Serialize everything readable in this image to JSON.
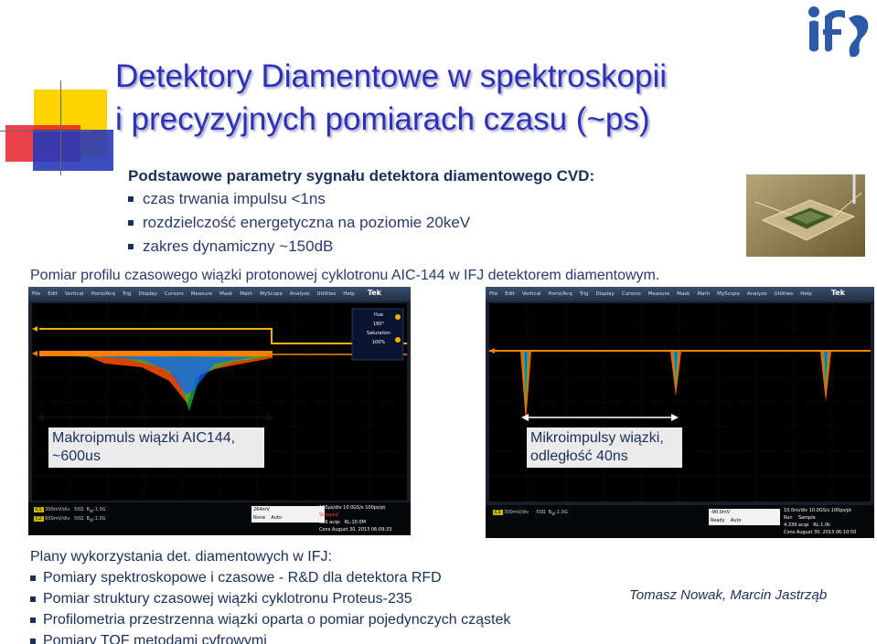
{
  "title": {
    "line1": "Detektory Diamentowe w spektroskopii",
    "line2": "i precyzyjnych pomiarach czasu (~ps)"
  },
  "params": {
    "heading": "Podstawowe parametry sygnału detektora diamentowego CVD:",
    "items": [
      "czas trwania impulsu <1ns",
      "rozdzielczość energetyczna na poziomie 20keV",
      "zakres dynamiczny ~150dB"
    ]
  },
  "measurement": "Pomiar profilu czasowego wiązki protonowej cyklotronu AIC-144 w IFJ detektorem diamentowym.",
  "scope1": {
    "menu": [
      "File",
      "Edit",
      "Vertical",
      "Horiz/Acq",
      "Trig",
      "Display",
      "Cursors",
      "Measure",
      "Mask",
      "Math",
      "MyScope",
      "Analyze",
      "Utilities",
      "Help"
    ],
    "brand": "Tek",
    "hue_label": "Hue",
    "hue_value": "180°",
    "sat_label": "Saturation",
    "sat_value": "100%",
    "ch1": "300mV/div",
    "ch2": "600mV/div",
    "imp": "50Ω",
    "bw": "1.0G",
    "trigger": "264mV",
    "trig_mode": "None",
    "auto": "Auto",
    "timebase": "100µs/div",
    "sample": "10.0GS/s",
    "res": "100ps/pt",
    "state": "Stopped",
    "acqs": "386 acqs",
    "rl": "RL:10.0M",
    "cons": "Cons",
    "date": "August 30, 2013",
    "time": "06:09:33"
  },
  "scope2": {
    "menu": [
      "File",
      "Edit",
      "Vertical",
      "Horiz/Acq",
      "Trig",
      "Display",
      "Cursors",
      "Measure",
      "Mask",
      "Math",
      "MyScope",
      "Analyze",
      "Utilities",
      "Help"
    ],
    "brand": "Tek",
    "ch1": "300mV/div",
    "imp": "50Ω",
    "bw": "1.0G",
    "trigger": "-90.0mV",
    "state": "Ready",
    "auto": "Auto",
    "timebase": "10.0ns/div",
    "sample": "10.0GS/s",
    "res": "100ps/pt",
    "run": "Run",
    "run_mode": "Sample",
    "acqs": "4.339 acqs",
    "rl": "RL:1.0k",
    "cons": "Cons",
    "date": "August 30, 2013",
    "time": "06:10:50"
  },
  "annotation1": "Makroipmuls wiązki AIC144, ~600us",
  "annotation2": "Mikroimpulsy wiązki, odległość 40ns",
  "uses": {
    "heading": "Plany wykorzystania det. diamentowych w IFJ:",
    "items": [
      "Pomiary spektroskopowe i czasowe - R&D dla detektora RFD",
      "Pomiar struktury czasowej wiązki cyklotronu Proteus-235",
      "Profilometria przestrzenna wiązki oparta o pomiar pojedynczych cząstek",
      "Pomiary TOF metodami cyfrowymi"
    ]
  },
  "authors": "Tomasz Nowak, Marcin Jastrząb"
}
